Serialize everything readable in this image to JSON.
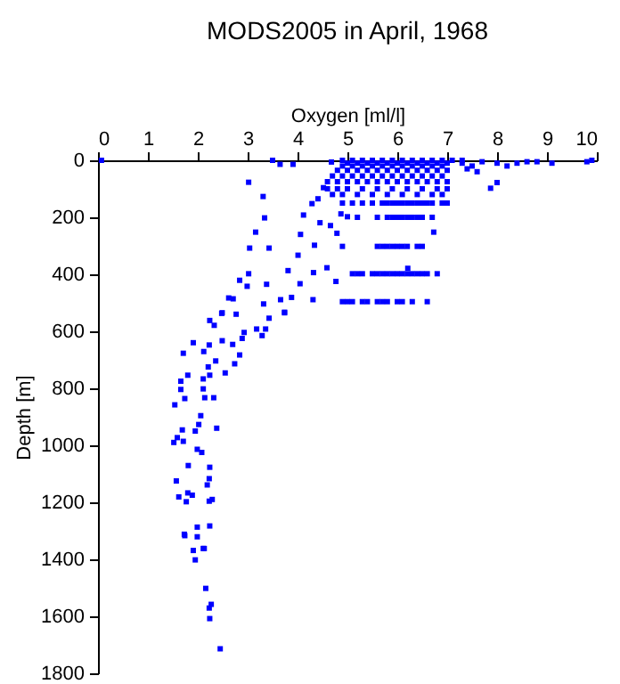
{
  "chart_data": {
    "type": "scatter",
    "title": "MODS2005 in April, 1968",
    "xlabel": "Oxygen [ml/l]",
    "ylabel": "Depth [m]",
    "xlim": [
      0,
      10
    ],
    "xticks": [
      0,
      1,
      2,
      3,
      4,
      5,
      6,
      7,
      8,
      9,
      10
    ],
    "ylim": [
      1800,
      0
    ],
    "yticks": [
      0,
      200,
      400,
      600,
      800,
      1000,
      1200,
      1400,
      1600,
      1800
    ],
    "grid": false,
    "marker": "square",
    "series": [
      {
        "color": "#0000ff",
        "x": [
          4.9,
          5.1,
          5.3,
          5.5,
          5.7,
          5.9,
          6.1,
          6.3,
          6.5,
          6.7,
          6.9,
          7.1,
          7.3,
          5.0,
          5.2,
          5.4,
          5.6,
          5.8,
          6.0,
          6.2,
          6.4,
          6.6,
          6.8,
          7.0,
          4.9,
          5.1,
          5.3,
          5.5,
          5.7,
          5.9,
          6.1,
          6.3,
          6.5,
          6.7,
          6.9,
          4.8,
          5.0,
          5.2,
          5.4,
          5.6,
          5.8,
          6.0,
          6.2,
          6.4,
          6.6,
          6.8,
          7.0,
          4.7,
          4.9,
          5.1,
          5.3,
          5.5,
          5.7,
          5.9,
          6.1,
          6.3,
          6.5,
          6.7,
          6.9,
          4.6,
          4.8,
          5.0,
          5.2,
          5.4,
          5.6,
          5.8,
          6.0,
          6.2,
          6.4,
          6.6,
          6.8,
          7.0,
          4.6,
          4.8,
          5.0,
          5.3,
          5.6,
          5.9,
          6.2,
          6.5,
          6.8,
          7.0,
          4.7,
          4.9,
          5.2,
          5.5,
          5.8,
          6.1,
          6.4,
          6.7,
          6.9,
          4.9,
          5.1,
          5.3,
          5.5,
          5.7,
          5.8,
          5.9,
          6.0,
          6.1,
          6.2,
          6.3,
          6.4,
          6.5,
          6.6,
          6.7,
          6.9,
          7.0,
          5.2,
          5.6,
          5.8,
          5.9,
          6.0,
          6.1,
          6.2,
          6.3,
          6.4,
          6.5,
          6.7,
          5.6,
          5.7,
          5.8,
          5.9,
          6.0,
          6.1,
          6.2,
          6.4,
          6.5,
          5.1,
          5.2,
          5.3,
          5.5,
          5.6,
          5.7,
          5.8,
          5.9,
          6.0,
          6.1,
          6.2,
          6.3,
          6.4,
          6.5,
          6.6,
          6.8,
          4.9,
          5.0,
          5.1,
          5.3,
          5.4,
          5.6,
          5.7,
          5.8,
          6.0,
          6.1,
          6.3,
          6.6,
          7.3,
          7.5,
          7.7,
          8.0,
          8.2,
          8.4,
          8.6,
          8.8,
          9.1,
          9.8,
          9.9,
          7.87,
          8.0,
          7.4,
          7.6,
          0.07,
          3.5,
          3.65,
          3.91,
          4.68,
          3.02,
          3.31,
          3.34,
          3.16,
          3.04,
          3.43,
          4.06,
          4.12,
          4.29,
          4.01,
          4.34,
          3.81,
          3.02,
          2.99,
          2.84,
          3.38,
          4.05,
          4.32,
          4.59,
          4.77,
          2.62,
          2.71,
          3.32,
          3.66,
          3.88,
          4.31,
          3.74,
          2.49,
          4.66,
          4.79,
          4.9,
          4.45,
          4.41,
          4.52,
          4.87,
          5.0,
          6.73,
          6.21,
          2.24,
          2.48,
          2.77,
          2.33,
          2.93,
          3.18,
          3.36,
          3.29,
          3.43,
          3.74,
          1.91,
          1.71,
          2.23,
          2.49,
          2.7,
          2.89,
          2.84,
          2.12,
          2.36,
          2.21,
          2.55,
          2.74,
          1.8,
          1.66,
          2.11,
          2.24,
          1.66,
          2.11,
          1.74,
          2.32,
          2.14,
          1.54,
          2.06,
          2.02,
          2.38,
          1.69,
          1.95,
          1.59,
          1.52,
          1.71,
          1.99,
          2.08,
          1.81,
          2.24,
          1.57,
          2.23,
          2.19,
          1.8,
          1.62,
          1.89,
          1.77,
          2.23,
          2.29,
          1.73,
          1.99,
          2.24,
          1.91,
          2.13,
          1.74,
          1.99,
          2.11,
          1.95,
          2.16,
          2.27,
          2.23,
          2.24,
          2.45
        ],
        "values": [
          0,
          0,
          0,
          0,
          0,
          0,
          0,
          0,
          0,
          0,
          0,
          0,
          0,
          10,
          10,
          10,
          10,
          10,
          10,
          10,
          10,
          10,
          10,
          10,
          20,
          20,
          20,
          20,
          20,
          20,
          20,
          20,
          20,
          20,
          20,
          35,
          35,
          35,
          35,
          35,
          35,
          35,
          35,
          35,
          35,
          35,
          35,
          55,
          55,
          55,
          55,
          55,
          55,
          55,
          55,
          55,
          55,
          55,
          55,
          75,
          75,
          75,
          75,
          75,
          75,
          75,
          75,
          75,
          75,
          75,
          75,
          75,
          100,
          100,
          100,
          100,
          100,
          100,
          100,
          100,
          100,
          100,
          120,
          120,
          120,
          120,
          120,
          120,
          120,
          120,
          120,
          150,
          150,
          150,
          150,
          150,
          150,
          150,
          150,
          150,
          150,
          150,
          150,
          150,
          150,
          150,
          150,
          150,
          200,
          200,
          200,
          200,
          200,
          200,
          200,
          200,
          200,
          200,
          200,
          302,
          302,
          302,
          302,
          302,
          302,
          302,
          302,
          302,
          398,
          398,
          398,
          398,
          398,
          398,
          398,
          398,
          398,
          398,
          398,
          398,
          398,
          398,
          398,
          398,
          496,
          496,
          496,
          496,
          496,
          496,
          496,
          496,
          496,
          496,
          496,
          496,
          10,
          20,
          5,
          10,
          20,
          10,
          5,
          5,
          10,
          5,
          0,
          98,
          78,
          30,
          40,
          0,
          0,
          14,
          14,
          6,
          77,
          127,
          202,
          252,
          308,
          308,
          260,
          192,
          152,
          333,
          298,
          387,
          398,
          442,
          421,
          435,
          433,
          394,
          377,
          425,
          483,
          486,
          504,
          489,
          481,
          489,
          533,
          535,
          229,
          256,
          302,
          219,
          135,
          96,
          188,
          198,
          252,
          379,
          562,
          537,
          540,
          579,
          604,
          592,
          592,
          615,
          554,
          535,
          640,
          677,
          648,
          633,
          646,
          625,
          683,
          671,
          704,
          725,
          746,
          714,
          754,
          775,
          767,
          754,
          804,
          802,
          836,
          833,
          833,
          858,
          896,
          927,
          940,
          946,
          950,
          973,
          990,
          986,
          1014,
          1025,
          1071,
          1077,
          1125,
          1117,
          1139,
          1167,
          1181,
          1175,
          1198,
          1196,
          1190,
          1312,
          1287,
          1283,
          1369,
          1362,
          1317,
          1321,
          1362,
          1402,
          1502,
          1558,
          1571,
          1608,
          1714
        ]
      }
    ]
  }
}
